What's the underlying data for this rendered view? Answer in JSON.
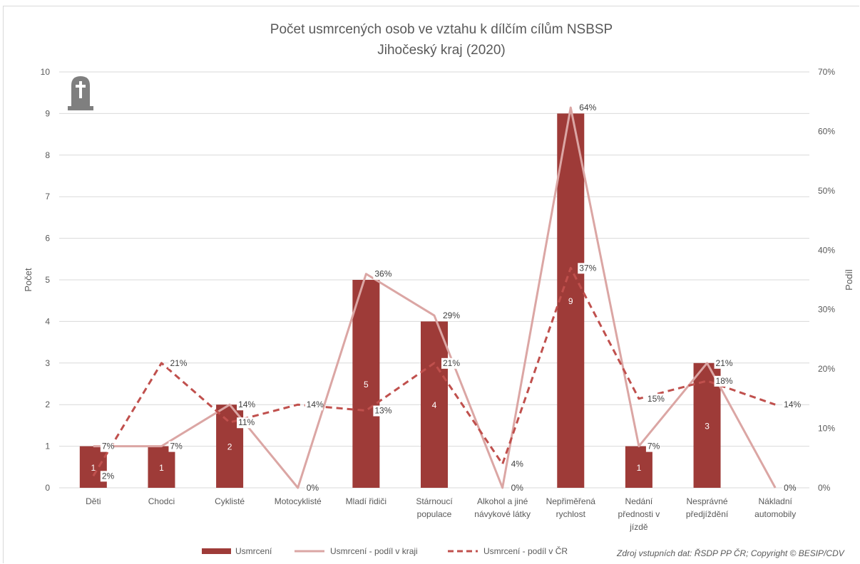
{
  "chart_data": {
    "type": "bar",
    "title": "Počet usmrcených osob ve vztahu k dílčím cílům NSBSP",
    "subtitle": "Jihočeský kraj (2020)",
    "ylabel": "Počet",
    "y2label": "Podíl",
    "ylim": [
      0,
      10
    ],
    "y2lim": [
      0,
      70
    ],
    "yticks": [
      "0",
      "1",
      "2",
      "3",
      "4",
      "5",
      "6",
      "7",
      "8",
      "9",
      "10"
    ],
    "y2ticks": [
      "0%",
      "10%",
      "20%",
      "30%",
      "40%",
      "50%",
      "60%",
      "70%"
    ],
    "grid": true,
    "legend_position": "bottom",
    "categories": [
      [
        "Děti"
      ],
      [
        "Chodci"
      ],
      [
        "Cyklisté"
      ],
      [
        "Motocyklisté"
      ],
      [
        "Mladí řidiči"
      ],
      [
        "Stárnoucí",
        "populace"
      ],
      [
        "Alkohol a jiné",
        "návykové látky"
      ],
      [
        "Nepřiměřená",
        "rychlost"
      ],
      [
        "Nedání",
        "přednosti v",
        "jízdě"
      ],
      [
        "Nesprávné",
        "předjíždění"
      ],
      [
        "Nákladní",
        "automobily"
      ]
    ],
    "series": [
      {
        "name": "Usmrcení",
        "kind": "bar",
        "axis": "left",
        "color": "#9e3b38",
        "values": [
          1,
          1,
          2,
          0,
          5,
          4,
          0,
          9,
          1,
          3,
          0
        ],
        "labels": [
          "1",
          "1",
          "2",
          "",
          "5",
          "4",
          "",
          "9",
          "1",
          "3",
          ""
        ]
      },
      {
        "name": "Usmrcení - podíl v kraji",
        "kind": "line",
        "axis": "right",
        "color": "#dba6a4",
        "values": [
          7,
          7,
          14,
          0,
          36,
          29,
          0,
          64,
          7,
          21,
          0
        ],
        "labels": [
          "7%",
          "7%",
          "14%",
          "0%",
          "36%",
          "29%",
          "0%",
          "64%",
          "7%",
          "21%",
          "0%"
        ]
      },
      {
        "name": "Usmrcení - podíl v ČR",
        "kind": "dashed-line",
        "axis": "right",
        "color": "#c0504d",
        "values": [
          2,
          21,
          11,
          14,
          13,
          21,
          4,
          37,
          15,
          18,
          14
        ],
        "labels": [
          "2%",
          "21%",
          "11%",
          "14%",
          "13%",
          "21%",
          "4%",
          "37%",
          "15%",
          "18%",
          "14%"
        ]
      }
    ]
  },
  "source_text": "Zdroj vstupních dat: ŘSDP PP ČR; Copyright © BESIP/CDV",
  "icon": "gravestone-icon"
}
